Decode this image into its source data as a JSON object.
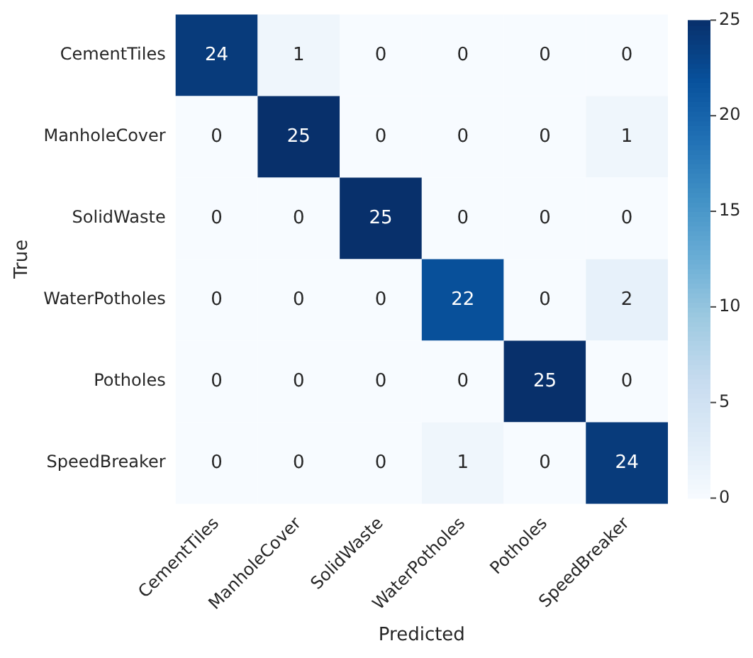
{
  "chart_data": {
    "type": "heatmap",
    "xlabel": "Predicted",
    "ylabel": "True",
    "categories": [
      "CementTiles",
      "ManholeCover",
      "SolidWaste",
      "WaterPotholes",
      "Potholes",
      "SpeedBreaker"
    ],
    "y_categories": [
      "CementTiles",
      "ManholeCover",
      "SolidWaste",
      "WaterPotholes",
      "Potholes",
      "SpeedBreaker"
    ],
    "cells": [
      [
        24,
        1,
        0,
        0,
        0,
        0
      ],
      [
        0,
        25,
        0,
        0,
        0,
        1
      ],
      [
        0,
        0,
        25,
        0,
        0,
        0
      ],
      [
        0,
        0,
        0,
        22,
        0,
        2
      ],
      [
        0,
        0,
        0,
        0,
        25,
        0
      ],
      [
        0,
        0,
        0,
        1,
        0,
        24
      ]
    ],
    "clim": [
      0,
      25
    ],
    "cticks": [
      0,
      5,
      10,
      15,
      20,
      25
    ],
    "data_labels": true
  }
}
